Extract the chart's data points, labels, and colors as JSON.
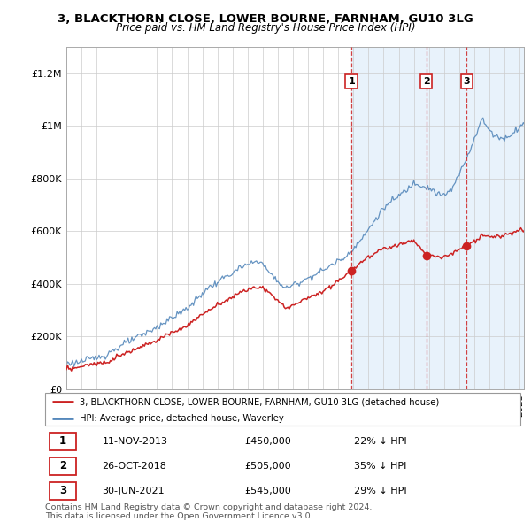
{
  "title_line1": "3, BLACKTHORN CLOSE, LOWER BOURNE, FARNHAM, GU10 3LG",
  "title_line2": "Price paid vs. HM Land Registry's House Price Index (HPI)",
  "ylim": [
    0,
    1300000
  ],
  "yticks": [
    0,
    200000,
    400000,
    600000,
    800000,
    1000000,
    1200000
  ],
  "ytick_labels": [
    "£0",
    "£200K",
    "£400K",
    "£600K",
    "£800K",
    "£1M",
    "£1.2M"
  ],
  "hpi_color": "#5588bb",
  "price_color": "#cc2222",
  "vline_color": "#cc2222",
  "shading_color": "#ddeeff",
  "background_color": "#ffffff",
  "grid_color": "#cccccc",
  "sales": [
    {
      "label": "1",
      "date_num": 2013.87,
      "price": 450000,
      "pct": "22% ↓ HPI",
      "date_str": "11-NOV-2013"
    },
    {
      "label": "2",
      "date_num": 2018.82,
      "price": 505000,
      "pct": "35% ↓ HPI",
      "date_str": "26-OCT-2018"
    },
    {
      "label": "3",
      "date_num": 2021.5,
      "price": 545000,
      "pct": "29% ↓ HPI",
      "date_str": "30-JUN-2021"
    }
  ],
  "legend_line1": "3, BLACKTHORN CLOSE, LOWER BOURNE, FARNHAM, GU10 3LG (detached house)",
  "legend_line2": "HPI: Average price, detached house, Waverley",
  "footnote": "Contains HM Land Registry data © Crown copyright and database right 2024.\nThis data is licensed under the Open Government Licence v3.0.",
  "xmin": 1995.0,
  "xmax": 2025.3
}
